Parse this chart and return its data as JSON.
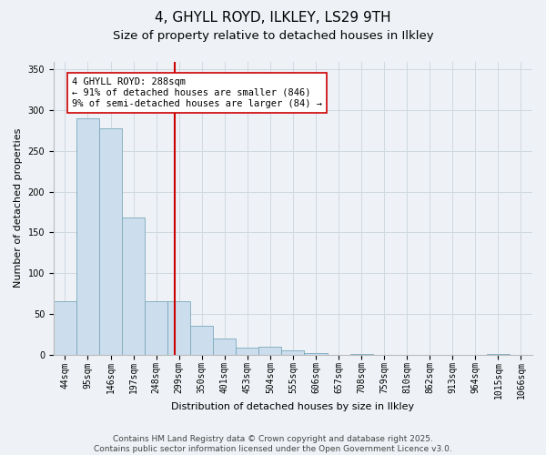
{
  "title": "4, GHYLL ROYD, ILKLEY, LS29 9TH",
  "subtitle": "Size of property relative to detached houses in Ilkley",
  "xlabel": "Distribution of detached houses by size in Ilkley",
  "ylabel": "Number of detached properties",
  "bar_color": "#ccdded",
  "bar_edge_color": "#7aaabb",
  "grid_color": "#d0d8e0",
  "background_color": "#eef2f6",
  "vline_color": "#cc0000",
  "vline_x": 4.82,
  "annotation_text": "4 GHYLL ROYD: 288sqm\n← 91% of detached houses are smaller (846)\n9% of semi-detached houses are larger (84) →",
  "annotation_box_color": "white",
  "annotation_box_edge_color": "#cc0000",
  "bins": [
    "44sqm",
    "95sqm",
    "146sqm",
    "197sqm",
    "248sqm",
    "299sqm",
    "350sqm",
    "401sqm",
    "453sqm",
    "504sqm",
    "555sqm",
    "606sqm",
    "657sqm",
    "708sqm",
    "759sqm",
    "810sqm",
    "862sqm",
    "913sqm",
    "964sqm",
    "1015sqm",
    "1066sqm"
  ],
  "values": [
    65,
    290,
    278,
    168,
    65,
    65,
    35,
    20,
    8,
    10,
    5,
    2,
    0,
    1,
    0,
    0,
    0,
    0,
    0,
    1,
    0
  ],
  "ylim": [
    0,
    360
  ],
  "yticks": [
    0,
    50,
    100,
    150,
    200,
    250,
    300,
    350
  ],
  "footer": "Contains HM Land Registry data © Crown copyright and database right 2025.\nContains public sector information licensed under the Open Government Licence v3.0.",
  "title_fontsize": 11,
  "subtitle_fontsize": 9.5,
  "axis_label_fontsize": 8,
  "tick_fontsize": 7,
  "annotation_fontsize": 7.5,
  "footer_fontsize": 6.5
}
